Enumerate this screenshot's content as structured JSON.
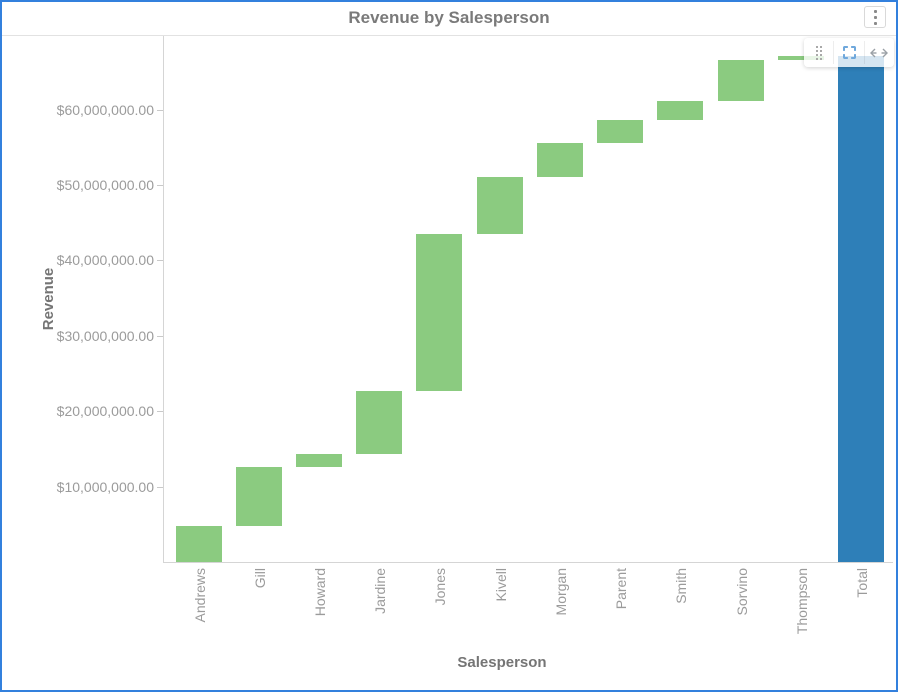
{
  "widget": {
    "title": "Revenue by Salesperson",
    "menu_icon": "kebab-menu-icon"
  },
  "toolbar": {
    "buttons": [
      {
        "name": "drag-handle",
        "icon": "drag-handle-icon"
      },
      {
        "name": "zoom-selection",
        "icon": "zoom-selection-icon"
      },
      {
        "name": "pan",
        "icon": "pan-horizontal-icon"
      }
    ]
  },
  "chart_data": {
    "type": "bar",
    "variant": "waterfall",
    "title": "Revenue by Salesperson",
    "xlabel": "Salesperson",
    "ylabel": "Revenue",
    "categories": [
      "Andrews",
      "Gill",
      "Howard",
      "Jardine",
      "Jones",
      "Kivell",
      "Morgan",
      "Parent",
      "Smith",
      "Sorvino",
      "Thompson",
      "Total"
    ],
    "values": [
      4770000,
      7790000,
      1720000,
      8440000,
      20740000,
      7560000,
      4510000,
      3050000,
      2600000,
      5360000,
      570000,
      67110000
    ],
    "bar_roles": [
      "increase",
      "increase",
      "increase",
      "increase",
      "increase",
      "increase",
      "increase",
      "increase",
      "increase",
      "increase",
      "increase",
      "total"
    ],
    "cumulative_end": [
      4770000,
      12560000,
      14280000,
      22720000,
      43460000,
      51020000,
      55530000,
      58580000,
      61180000,
      66540000,
      67110000,
      67110000
    ],
    "y_ticks": [
      {
        "value": 10000000,
        "label": "$10,000,000.00"
      },
      {
        "value": 20000000,
        "label": "$20,000,000.00"
      },
      {
        "value": 30000000,
        "label": "$30,000,000.00"
      },
      {
        "value": 40000000,
        "label": "$40,000,000.00"
      },
      {
        "value": 50000000,
        "label": "$50,000,000.00"
      },
      {
        "value": 60000000,
        "label": "$60,000,000.00"
      }
    ],
    "ylim": [
      0,
      69800000
    ],
    "grid": false,
    "legend": false,
    "colors": {
      "bar_increase": "#8bcb80",
      "bar_total": "#2e7fb8",
      "widget_border": "#3380dd",
      "axis_line": "#d5d5d5",
      "label_text": "#9b9b9b",
      "title_text": "#757575"
    }
  }
}
